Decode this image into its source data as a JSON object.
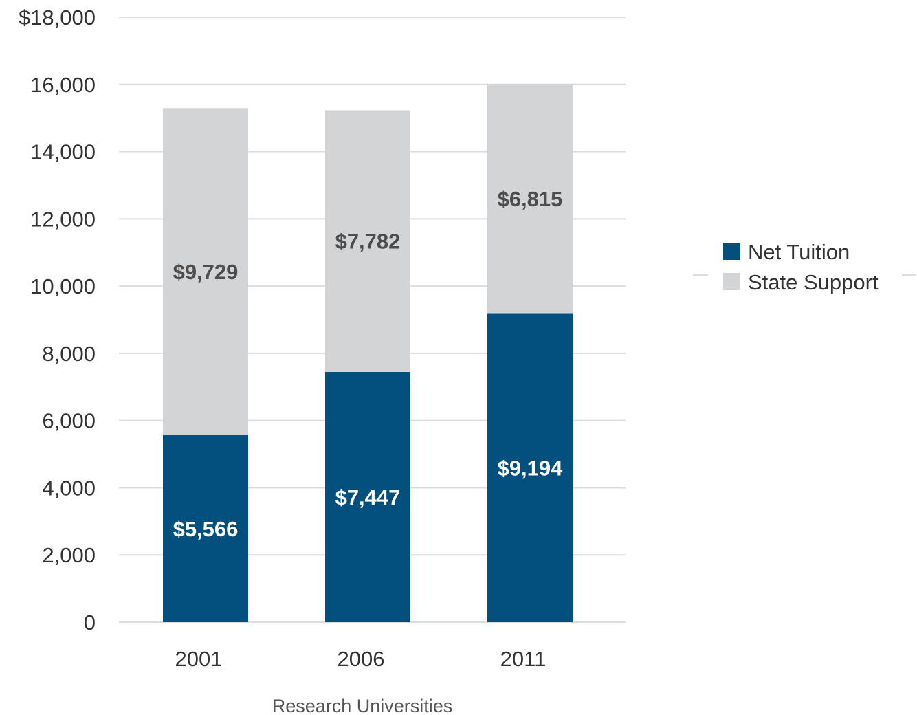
{
  "chart_data": {
    "type": "bar",
    "stacked": true,
    "title": "",
    "xlabel": "Research Universities",
    "ylabel": "",
    "categories": [
      "2001",
      "2006",
      "2011"
    ],
    "ylim": [
      0,
      18000
    ],
    "y_ticks": [
      {
        "value": 0,
        "label": "0"
      },
      {
        "value": 2000,
        "label": "2,000"
      },
      {
        "value": 4000,
        "label": "4,000"
      },
      {
        "value": 6000,
        "label": "6,000"
      },
      {
        "value": 8000,
        "label": "8,000"
      },
      {
        "value": 10000,
        "label": "10,000"
      },
      {
        "value": 12000,
        "label": "12,000"
      },
      {
        "value": 14000,
        "label": "14,000"
      },
      {
        "value": 16000,
        "label": "16,000"
      },
      {
        "value": 18000,
        "label": "$18,000"
      }
    ],
    "series": [
      {
        "name": "Net Tuition",
        "color": "#03507f",
        "label_color": "#ffffff",
        "values": [
          5566,
          7447,
          9194
        ],
        "labels": [
          "$5,566",
          "$7,447",
          "$9,194"
        ]
      },
      {
        "name": "State Support",
        "color": "#d3d4d6",
        "label_color": "#4d4d4d",
        "values": [
          9729,
          7782,
          6815
        ],
        "labels": [
          "$9,729",
          "$7,782",
          "$6,815"
        ]
      }
    ],
    "grid": true,
    "legend_position": "right"
  }
}
